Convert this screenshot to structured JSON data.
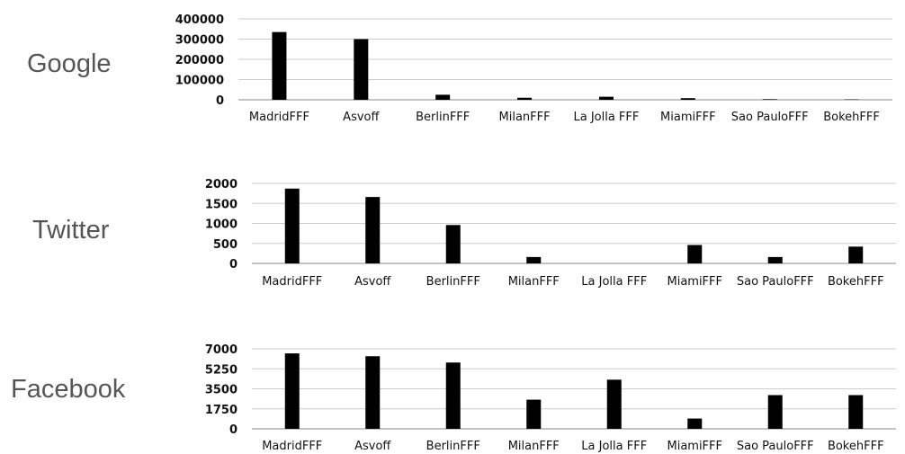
{
  "panels": [
    {
      "label": "Google"
    },
    {
      "label": "Twitter"
    },
    {
      "label": "Facebook"
    }
  ],
  "colors": {
    "bar": "#000000",
    "grid": "#cccccc",
    "axis": "#888888",
    "text": "#111111",
    "label": "#555555"
  },
  "chart_data": [
    {
      "type": "bar",
      "categories": [
        "MadridFFF",
        "Asvoff",
        "BerlinFFF",
        "MilanFFF",
        "La Jolla FFF",
        "MiamiFFF",
        "Sao PauloFFF",
        "BokehFFF"
      ],
      "values": [
        335000,
        300000,
        25000,
        10000,
        15000,
        8000,
        3000,
        2000
      ],
      "yticks": [
        0,
        100000,
        200000,
        300000,
        400000
      ],
      "ylim": [
        0,
        400000
      ],
      "grid": true,
      "title": "",
      "xlabel": "",
      "ylabel": ""
    },
    {
      "type": "bar",
      "categories": [
        "MadridFFF",
        "Asvoff",
        "BerlinFFF",
        "MilanFFF",
        "La Jolla FFF",
        "MiamiFFF",
        "Sao PauloFFF",
        "BokehFFF"
      ],
      "values": [
        1870,
        1660,
        960,
        160,
        0,
        460,
        160,
        420
      ],
      "yticks": [
        0,
        500,
        1000,
        1500,
        2000
      ],
      "ylim": [
        0,
        2000
      ],
      "grid": true,
      "title": "",
      "xlabel": "",
      "ylabel": ""
    },
    {
      "type": "bar",
      "categories": [
        "MadridFFF",
        "Asvoff",
        "BerlinFFF",
        "MilanFFF",
        "La Jolla FFF",
        "MiamiFFF",
        "Sao PauloFFF",
        "BokehFFF"
      ],
      "values": [
        6600,
        6350,
        5800,
        2550,
        4300,
        900,
        2950,
        2950
      ],
      "yticks": [
        0,
        1750,
        3500,
        5250,
        7000
      ],
      "ylim": [
        0,
        7000
      ],
      "grid": true,
      "title": "",
      "xlabel": "",
      "ylabel": ""
    }
  ]
}
